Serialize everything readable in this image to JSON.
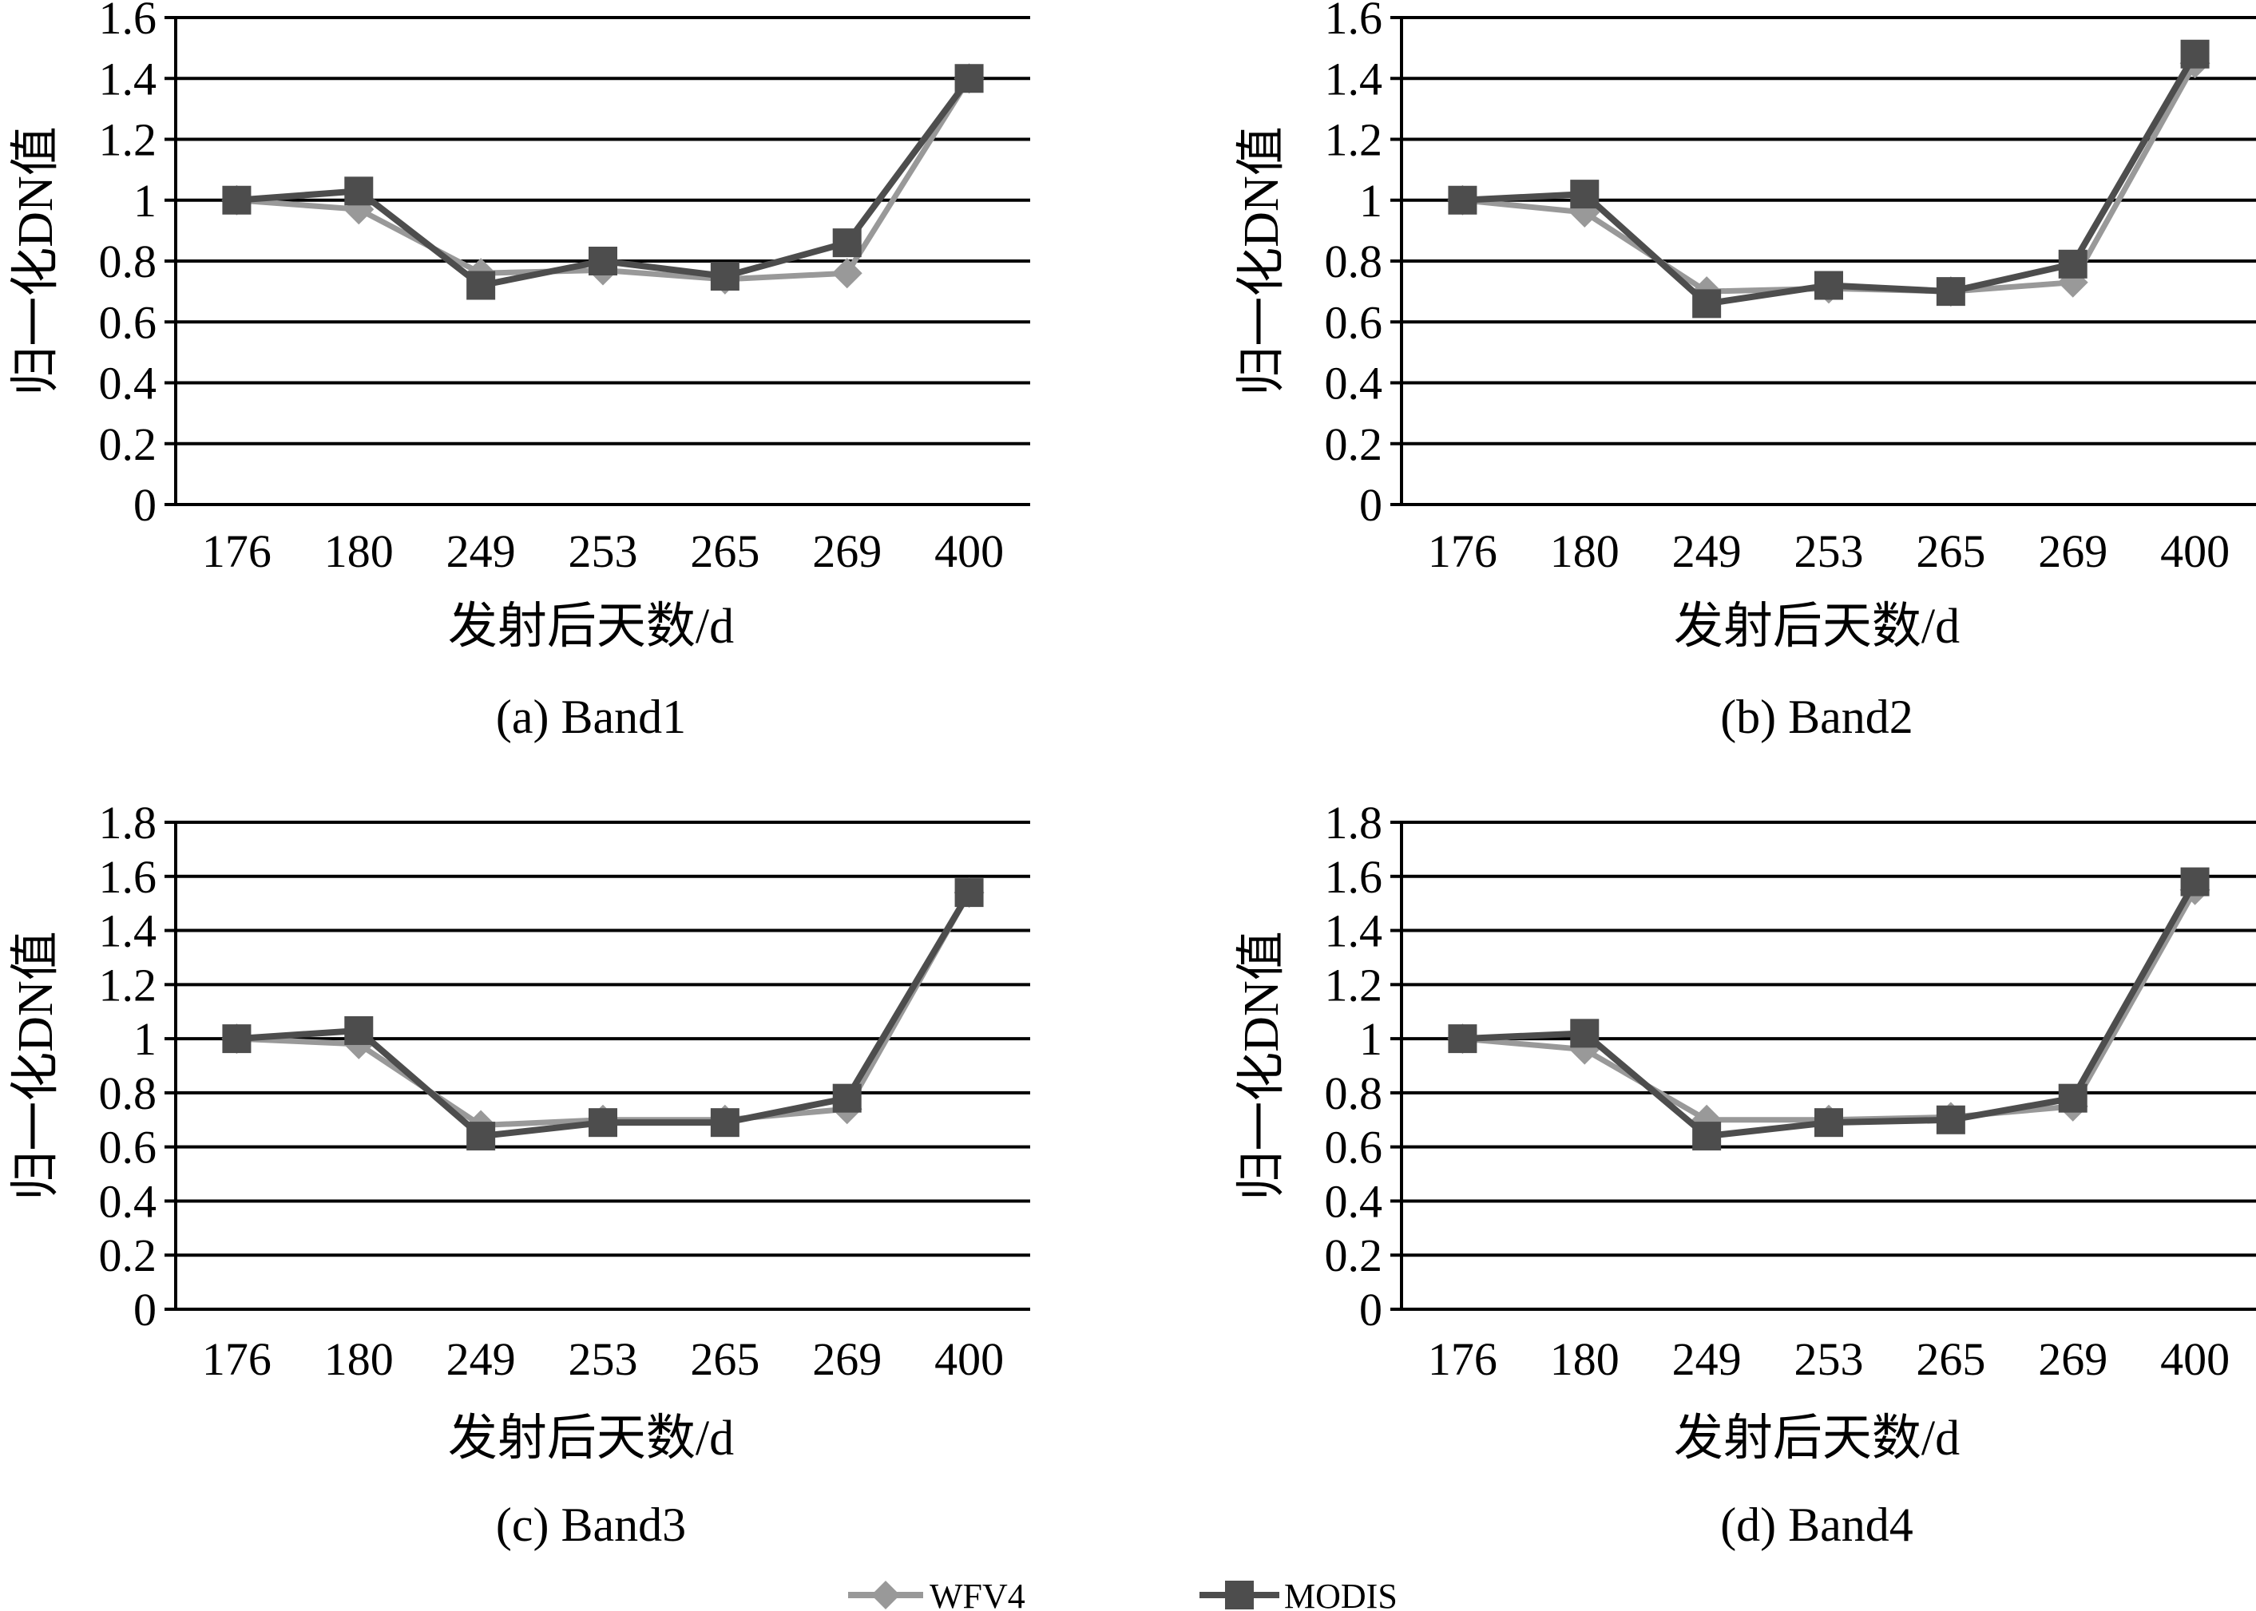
{
  "chart_data": [
    {
      "type": "line",
      "caption": "(a) Band1",
      "xlabel": "发射后天数/d",
      "ylabel": "归一化DN值",
      "categories": [
        "176",
        "180",
        "249",
        "253",
        "265",
        "269",
        "400"
      ],
      "ylim": [
        0,
        1.6
      ],
      "yticks": [
        "0",
        "0.2",
        "0.4",
        "0.6",
        "0.8",
        "1",
        "1.2",
        "1.4",
        "1.6"
      ],
      "grid": true,
      "series": [
        {
          "name": "WFV4",
          "values": [
            1.0,
            0.97,
            0.76,
            0.77,
            0.74,
            0.76,
            1.4
          ]
        },
        {
          "name": "MODIS",
          "values": [
            1.0,
            1.03,
            0.72,
            0.8,
            0.75,
            0.86,
            1.4
          ]
        }
      ]
    },
    {
      "type": "line",
      "caption": "(b) Band2",
      "xlabel": "发射后天数/d",
      "ylabel": "归一化DN值",
      "categories": [
        "176",
        "180",
        "249",
        "253",
        "265",
        "269",
        "400"
      ],
      "ylim": [
        0,
        1.6
      ],
      "yticks": [
        "0",
        "0.2",
        "0.4",
        "0.6",
        "0.8",
        "1",
        "1.2",
        "1.4",
        "1.6"
      ],
      "grid": true,
      "series": [
        {
          "name": "WFV4",
          "values": [
            1.0,
            0.96,
            0.7,
            0.71,
            0.7,
            0.73,
            1.45
          ]
        },
        {
          "name": "MODIS",
          "values": [
            1.0,
            1.02,
            0.66,
            0.72,
            0.7,
            0.79,
            1.48
          ]
        }
      ]
    },
    {
      "type": "line",
      "caption": "(c) Band3",
      "xlabel": "发射后天数/d",
      "ylabel": "归一化DN值",
      "categories": [
        "176",
        "180",
        "249",
        "253",
        "265",
        "269",
        "400"
      ],
      "ylim": [
        0,
        1.8
      ],
      "yticks": [
        "0",
        "0.2",
        "0.4",
        "0.6",
        "0.8",
        "1",
        "1.2",
        "1.4",
        "1.6",
        "1.8"
      ],
      "grid": true,
      "series": [
        {
          "name": "WFV4",
          "values": [
            1.0,
            0.98,
            0.68,
            0.7,
            0.7,
            0.74,
            1.54
          ]
        },
        {
          "name": "MODIS",
          "values": [
            1.0,
            1.03,
            0.64,
            0.69,
            0.69,
            0.78,
            1.54
          ]
        }
      ]
    },
    {
      "type": "line",
      "caption": "(d) Band4",
      "xlabel": "发射后天数/d",
      "ylabel": "归一化DN值",
      "categories": [
        "176",
        "180",
        "249",
        "253",
        "265",
        "269",
        "400"
      ],
      "ylim": [
        0,
        1.8
      ],
      "yticks": [
        "0",
        "0.2",
        "0.4",
        "0.6",
        "0.8",
        "1",
        "1.2",
        "1.4",
        "1.6",
        "1.8"
      ],
      "grid": true,
      "series": [
        {
          "name": "WFV4",
          "values": [
            1.0,
            0.96,
            0.7,
            0.7,
            0.71,
            0.75,
            1.55
          ]
        },
        {
          "name": "MODIS",
          "values": [
            1.0,
            1.02,
            0.64,
            0.69,
            0.7,
            0.78,
            1.58
          ]
        }
      ]
    }
  ],
  "legend": {
    "placement": "bottom-center",
    "items": [
      {
        "label": "WFV4",
        "color": "#999999",
        "marker": "diamond"
      },
      {
        "label": "MODIS",
        "color": "#4d4d4d",
        "marker": "square"
      }
    ]
  }
}
